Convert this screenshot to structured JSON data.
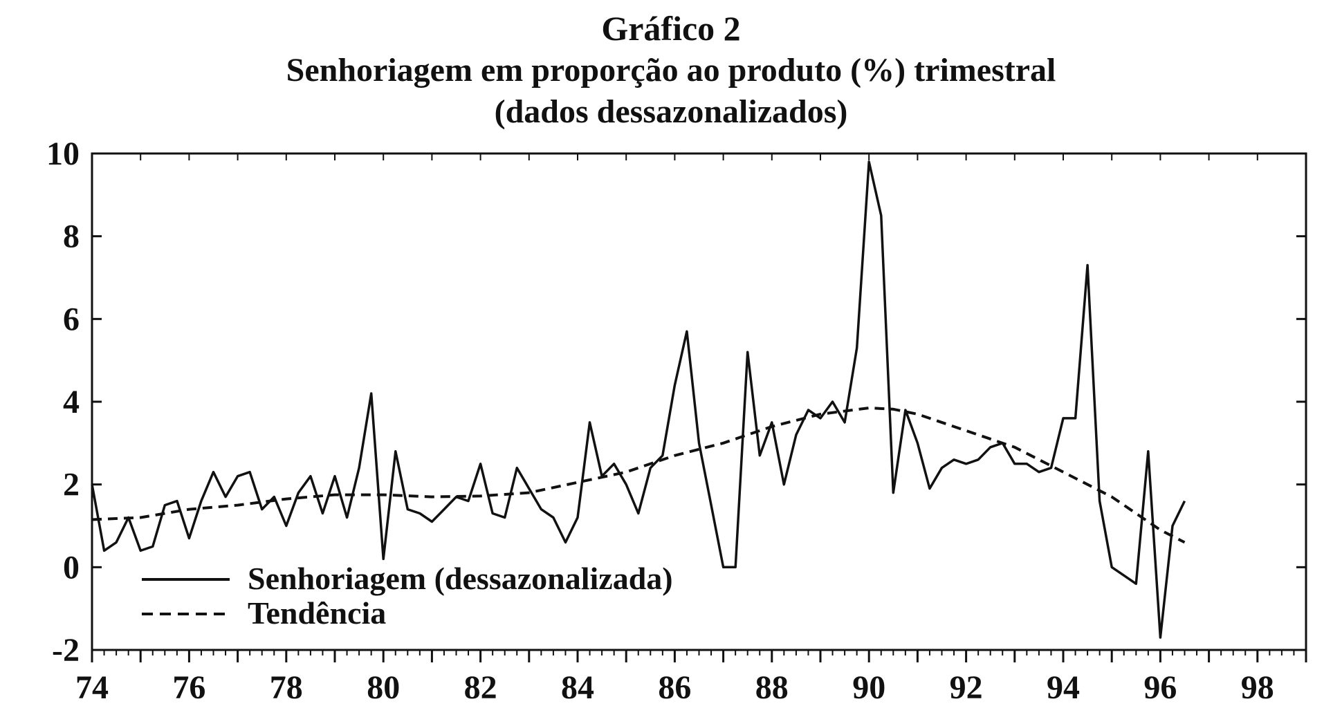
{
  "chart_data": {
    "type": "line",
    "title": "Gráfico 2",
    "subtitle": "Senhoriagem em proporção ao produto (%) trimestral",
    "subtitle2": "(dados dessazonalizados)",
    "xlabel": "",
    "ylabel": "",
    "xlim": [
      74,
      99
    ],
    "ylim": [
      -2,
      10
    ],
    "x_ticks": [
      "74",
      "76",
      "78",
      "80",
      "82",
      "84",
      "86",
      "88",
      "90",
      "92",
      "94",
      "96",
      "98"
    ],
    "y_ticks": [
      "10",
      "8",
      "6",
      "4",
      "2",
      "0",
      "-2"
    ],
    "grid": false,
    "legend_position": "bottom-left",
    "series": [
      {
        "name": "Senhoriagem (dessazonalizada)",
        "style": "solid",
        "x": [
          74.0,
          74.25,
          74.5,
          74.75,
          75.0,
          75.25,
          75.5,
          75.75,
          76.0,
          76.25,
          76.5,
          76.75,
          77.0,
          77.25,
          77.5,
          77.75,
          78.0,
          78.25,
          78.5,
          78.75,
          79.0,
          79.25,
          79.5,
          79.75,
          80.0,
          80.25,
          80.5,
          80.75,
          81.0,
          81.25,
          81.5,
          81.75,
          82.0,
          82.25,
          82.5,
          82.75,
          83.0,
          83.25,
          83.5,
          83.75,
          84.0,
          84.25,
          84.5,
          84.75,
          85.0,
          85.25,
          85.5,
          85.75,
          86.0,
          86.25,
          86.5,
          86.75,
          87.0,
          87.25,
          87.5,
          87.75,
          88.0,
          88.25,
          88.5,
          88.75,
          89.0,
          89.25,
          89.5,
          89.75,
          90.0,
          90.25,
          90.5,
          90.75,
          91.0,
          91.25,
          91.5,
          91.75,
          92.0,
          92.25,
          92.5,
          92.75,
          93.0,
          93.25,
          93.5,
          93.75,
          94.0,
          94.25,
          94.5,
          94.75,
          95.0,
          95.25,
          95.5,
          95.75,
          96.0,
          96.25,
          96.5
        ],
        "values": [
          2.0,
          0.4,
          0.6,
          1.2,
          0.4,
          0.5,
          1.5,
          1.6,
          0.7,
          1.6,
          2.3,
          1.7,
          2.2,
          2.3,
          1.4,
          1.7,
          1.0,
          1.8,
          2.2,
          1.3,
          2.2,
          1.2,
          2.4,
          4.2,
          0.2,
          2.8,
          1.4,
          1.3,
          1.1,
          1.4,
          1.7,
          1.6,
          2.5,
          1.3,
          1.2,
          2.4,
          1.9,
          1.4,
          1.2,
          0.6,
          1.2,
          3.5,
          2.2,
          2.5,
          2.0,
          1.3,
          2.4,
          2.7,
          4.4,
          5.7,
          3.0,
          1.5,
          0.0,
          0.0,
          5.2,
          2.7,
          3.5,
          2.0,
          3.2,
          3.8,
          3.6,
          4.0,
          3.5,
          5.3,
          9.8,
          8.5,
          1.8,
          3.8,
          3.0,
          1.9,
          2.4,
          2.6,
          2.5,
          2.6,
          2.9,
          3.0,
          2.5,
          2.5,
          2.3,
          2.4,
          3.6,
          3.6,
          7.3,
          1.6,
          0.0,
          -0.2,
          -0.4,
          2.8,
          -1.7,
          1.0,
          1.6
        ]
      },
      {
        "name": "Tendência",
        "style": "dashed",
        "x": [
          74.0,
          75.0,
          76.0,
          77.0,
          78.0,
          79.0,
          80.0,
          81.0,
          82.0,
          83.0,
          84.0,
          85.0,
          86.0,
          87.0,
          88.0,
          89.0,
          90.0,
          90.5,
          91.0,
          92.0,
          93.0,
          94.0,
          95.0,
          96.0,
          96.5
        ],
        "values": [
          1.15,
          1.2,
          1.4,
          1.5,
          1.65,
          1.75,
          1.75,
          1.7,
          1.72,
          1.8,
          2.05,
          2.3,
          2.7,
          3.0,
          3.4,
          3.7,
          3.85,
          3.82,
          3.7,
          3.3,
          2.9,
          2.3,
          1.7,
          0.9,
          0.6
        ]
      }
    ]
  }
}
